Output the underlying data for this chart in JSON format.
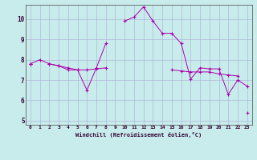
{
  "xlabel": "Windchill (Refroidissement éolien,°C)",
  "bg_color": "#c8ecec",
  "grid_color": "#b0b8d8",
  "line_color": "#aa00aa",
  "xlim": [
    -0.5,
    23.5
  ],
  "ylim": [
    4.8,
    10.7
  ],
  "yticks": [
    5,
    6,
    7,
    8,
    9,
    10
  ],
  "xticks": [
    0,
    1,
    2,
    3,
    4,
    5,
    6,
    7,
    8,
    9,
    10,
    11,
    12,
    13,
    14,
    15,
    16,
    17,
    18,
    19,
    20,
    21,
    22,
    23
  ],
  "series": [
    [
      7.8,
      8.0,
      7.8,
      7.7,
      7.5,
      7.5,
      6.5,
      7.6,
      8.8,
      null,
      9.9,
      10.1,
      10.6,
      9.9,
      9.3,
      9.3,
      8.8,
      7.05,
      7.6,
      7.55,
      7.55,
      6.3,
      7.0,
      6.7
    ],
    [
      7.8,
      null,
      7.8,
      7.7,
      7.6,
      7.5,
      7.5,
      7.55,
      7.6,
      null,
      null,
      null,
      null,
      null,
      null,
      7.5,
      7.45,
      7.4,
      7.4,
      7.4,
      7.3,
      7.25,
      7.2,
      null
    ],
    [
      7.8,
      null,
      null,
      null,
      null,
      null,
      null,
      null,
      null,
      null,
      null,
      null,
      null,
      null,
      null,
      null,
      null,
      null,
      null,
      null,
      null,
      null,
      null,
      5.4
    ]
  ]
}
